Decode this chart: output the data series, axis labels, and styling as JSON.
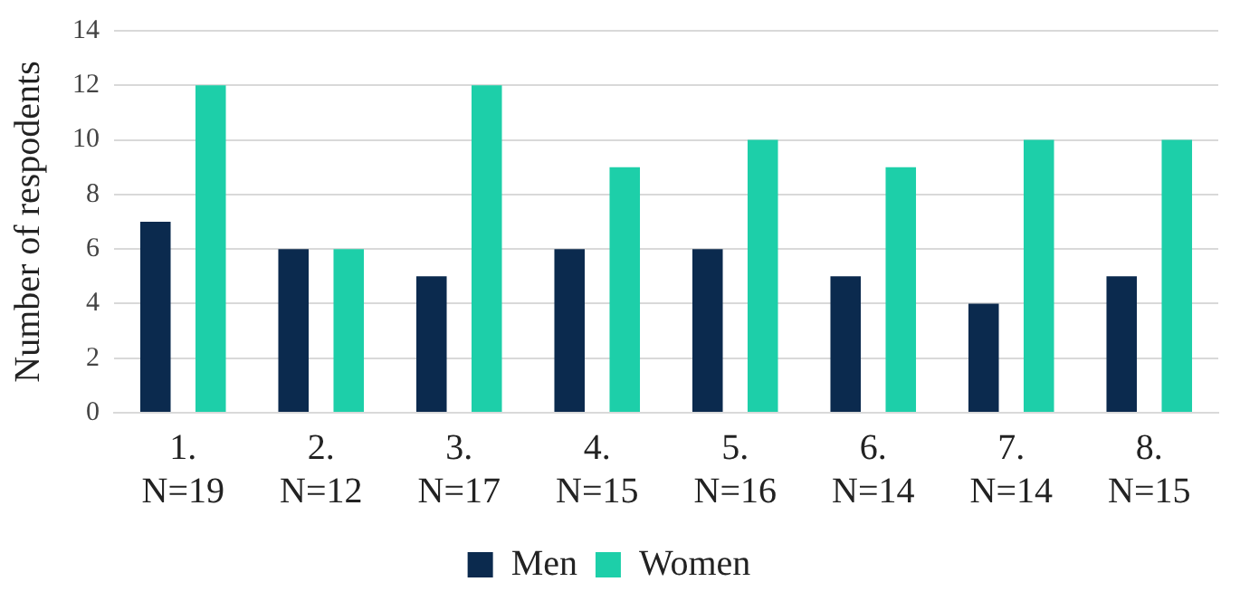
{
  "chart_data": {
    "type": "bar",
    "ylabel": "Number of respodents",
    "categories": [
      "1.\nN=19",
      "2.\nN=12",
      "3.\nN=17",
      "4.\nN=15",
      "5.\nN=16",
      "6.\nN=14",
      "7.\nN=14",
      "8.\nN=15"
    ],
    "series": [
      {
        "name": "Men",
        "color": "#0b2a4e",
        "values": [
          7,
          6,
          5,
          6,
          6,
          5,
          4,
          5
        ]
      },
      {
        "name": "Women",
        "color": "#1dcfa9",
        "values": [
          12,
          6,
          12,
          9,
          10,
          9,
          10,
          10
        ]
      }
    ],
    "ylim": [
      0,
      14
    ],
    "yticks": [
      0,
      2,
      4,
      6,
      8,
      10,
      12,
      14
    ],
    "grid": "y",
    "legend": "bottom"
  }
}
